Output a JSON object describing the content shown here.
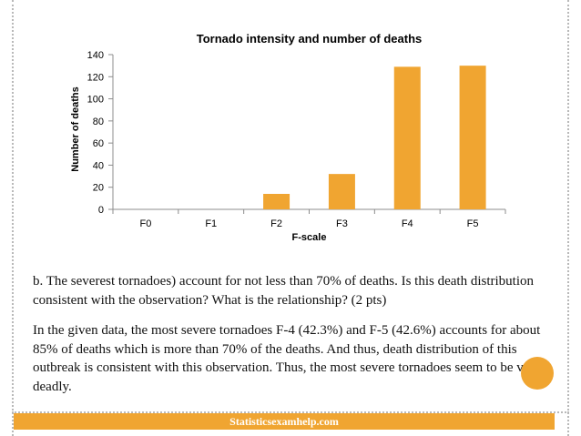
{
  "chart_data": {
    "type": "bar",
    "title": "Tornado intensity and number of deaths",
    "xlabel": "F-scale",
    "ylabel": "Number of deaths",
    "categories": [
      "F0",
      "F1",
      "F2",
      "F3",
      "F4",
      "F5"
    ],
    "values": [
      0,
      0,
      14,
      32,
      129,
      130
    ],
    "ylim": [
      0,
      140
    ],
    "yticks": [
      "0",
      "20",
      "40",
      "60",
      "80",
      "100",
      "120",
      "140"
    ],
    "grid": false,
    "legend": "none",
    "bar_color": "#f0a531"
  },
  "text": {
    "question": "b.  The severest tornadoes) account for not less than 70% of deaths. Is this death distribution consistent with the observation? What is the relationship? (2 pts)",
    "answer": "In the given data, the most severe tornadoes F-4 (42.3%) and F-5 (42.6%) accounts for about 85% of deaths which is more than 70% of the deaths. And thus, death distribution of this outbreak is consistent with this observation. Thus, the most severe tornadoes seem to be very deadly."
  },
  "footer": {
    "label": "Statisticsexamhelp.com",
    "color": "#f0a531"
  },
  "accent_color": "#f0a531"
}
